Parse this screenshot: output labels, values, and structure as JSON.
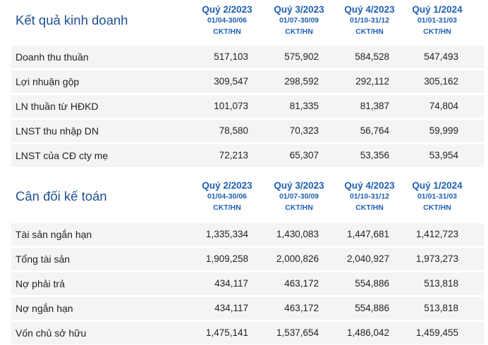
{
  "sections": [
    {
      "title": "Kết quả kinh doanh",
      "columns": [
        {
          "quarter": "Quý 2/2023",
          "range": "01/04-30/06",
          "unit": "CKT/HN"
        },
        {
          "quarter": "Quý 3/2023",
          "range": "01/07-30/09",
          "unit": "CKT/HN"
        },
        {
          "quarter": "Quý 4/2023",
          "range": "01/10-31/12",
          "unit": "CKT/HN"
        },
        {
          "quarter": "Quý 1/2024",
          "range": "01/01-31/03",
          "unit": "CKT/HN"
        }
      ],
      "rows": [
        {
          "label": "Doanh thu thuần",
          "values": [
            "517,103",
            "575,902",
            "584,528",
            "547,493"
          ]
        },
        {
          "label": "Lợi nhuận gộp",
          "values": [
            "309,547",
            "298,592",
            "292,112",
            "305,162"
          ]
        },
        {
          "label": "LN thuần từ HĐKD",
          "values": [
            "101,073",
            "81,335",
            "81,387",
            "74,804"
          ]
        },
        {
          "label": "LNST thu nhập DN",
          "values": [
            "78,580",
            "70,323",
            "56,764",
            "59,999"
          ]
        },
        {
          "label": "LNST của CĐ cty mẹ",
          "values": [
            "72,213",
            "65,307",
            "53,356",
            "53,954"
          ]
        }
      ]
    },
    {
      "title": "Cân đối kế toán",
      "columns": [
        {
          "quarter": "Quý 2/2023",
          "range": "01/04-30/06",
          "unit": "CKT/HN"
        },
        {
          "quarter": "Quý 3/2023",
          "range": "01/07-30/09",
          "unit": "CKT/HN"
        },
        {
          "quarter": "Quý 4/2023",
          "range": "01/10-31/12",
          "unit": "CKT/HN"
        },
        {
          "quarter": "Quý 1/2024",
          "range": "01/01-31/03",
          "unit": "CKT/HN"
        }
      ],
      "rows": [
        {
          "label": "Tài sản ngắn hạn",
          "values": [
            "1,335,334",
            "1,430,083",
            "1,447,681",
            "1,412,723"
          ]
        },
        {
          "label": "Tổng tài sản",
          "values": [
            "1,909,258",
            "2,000,826",
            "2,040,927",
            "1,973,273"
          ]
        },
        {
          "label": "Nợ phải trả",
          "values": [
            "434,117",
            "463,172",
            "554,886",
            "513,818"
          ]
        },
        {
          "label": "Nợ ngắn hạn",
          "values": [
            "434,117",
            "463,172",
            "554,886",
            "513,818"
          ]
        },
        {
          "label": "Vốn chủ sở hữu",
          "values": [
            "1,475,141",
            "1,537,654",
            "1,486,042",
            "1,459,455"
          ]
        }
      ]
    }
  ]
}
